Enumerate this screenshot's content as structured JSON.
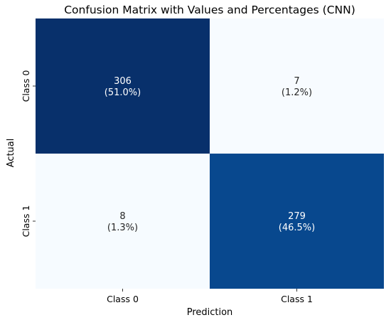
{
  "chart_data": {
    "type": "heatmap",
    "title": "Confusion Matrix with Values and Percentages (CNN)",
    "xlabel": "Prediction",
    "ylabel": "Actual",
    "x_categories": [
      "Class 0",
      "Class 1"
    ],
    "y_categories": [
      "Class 0",
      "Class 1"
    ],
    "values": [
      [
        306,
        7
      ],
      [
        8,
        279
      ]
    ],
    "percentages": [
      [
        "(51.0%)",
        "(1.2%)"
      ],
      [
        "(1.3%)",
        "(46.5%)"
      ]
    ],
    "colorbar": false,
    "colors": {
      "low": "#f7fbff",
      "high": "#08306b",
      "text_dark": "#262626",
      "text_light": "#ffffff"
    }
  }
}
